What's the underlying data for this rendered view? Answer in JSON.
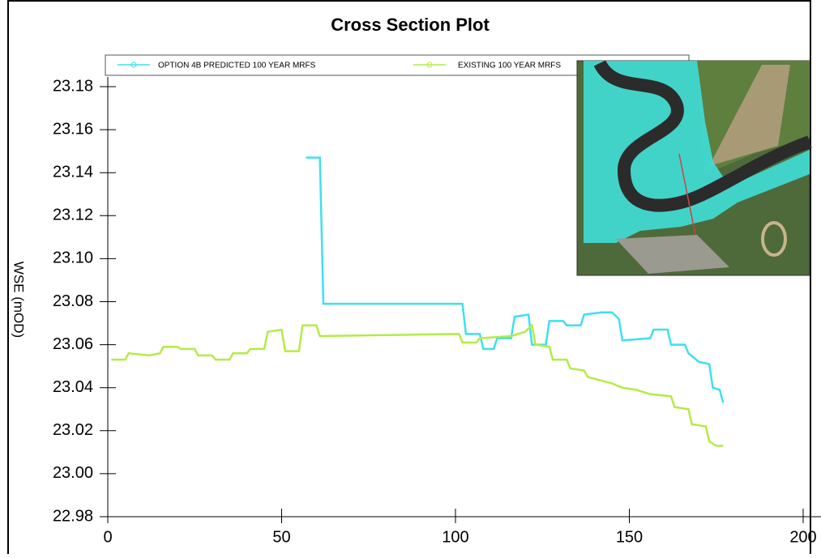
{
  "chart_data": {
    "type": "line",
    "title": "Cross Section Plot",
    "ylabel": "WSE (mOD)",
    "xlim": [
      0,
      200
    ],
    "xticks": [
      0,
      50,
      100,
      150,
      200
    ],
    "ylim": [
      22.98,
      23.18
    ],
    "yticks": [
      22.98,
      {
        "value": 23.0,
        "label": "23.00"
      },
      23.02,
      23.04,
      23.06,
      23.08,
      {
        "value": 23.1,
        "label": "23.10"
      },
      23.12,
      23.14,
      23.16,
      23.18
    ],
    "series": [
      {
        "name": "OPTION 4B PREDICTED 100 YEAR MRFS",
        "color": "#3fdff0",
        "x": [
          57,
          61,
          62,
          101,
          102,
          103,
          107,
          108,
          111,
          112,
          116,
          117,
          121,
          122,
          126,
          127,
          131,
          132,
          136,
          137,
          142,
          145,
          147,
          148,
          156,
          157,
          161,
          162,
          166,
          167,
          170,
          173,
          174,
          176,
          177
        ],
        "values": [
          23.147,
          23.147,
          23.079,
          23.079,
          23.079,
          23.065,
          23.065,
          23.058,
          23.058,
          23.063,
          23.063,
          23.073,
          23.074,
          23.06,
          23.06,
          23.071,
          23.071,
          23.069,
          23.069,
          23.074,
          23.075,
          23.075,
          23.072,
          23.062,
          23.063,
          23.067,
          23.067,
          23.06,
          23.06,
          23.056,
          23.052,
          23.051,
          23.04,
          23.039,
          23.033
        ]
      },
      {
        "name": "EXISTING 100 YEAR MRFS",
        "color": "#b3ec45",
        "x": [
          1,
          5,
          6,
          12,
          15,
          16,
          20,
          21,
          25,
          26,
          30,
          31,
          35,
          36,
          40,
          41,
          45,
          46,
          50,
          51,
          55,
          56,
          60,
          61,
          101,
          102,
          106,
          107,
          116,
          120,
          122,
          123,
          127,
          128,
          132,
          133,
          137,
          138,
          145,
          148,
          152,
          156,
          162,
          163,
          167,
          168,
          172,
          173,
          175,
          177
        ],
        "values": [
          23.053,
          23.053,
          23.056,
          23.055,
          23.056,
          23.059,
          23.059,
          23.058,
          23.058,
          23.055,
          23.055,
          23.053,
          23.053,
          23.056,
          23.056,
          23.058,
          23.058,
          23.066,
          23.067,
          23.057,
          23.057,
          23.069,
          23.069,
          23.064,
          23.065,
          23.061,
          23.061,
          23.063,
          23.064,
          23.066,
          23.069,
          23.06,
          23.059,
          23.053,
          23.053,
          23.049,
          23.048,
          23.045,
          23.042,
          23.04,
          23.039,
          23.037,
          23.036,
          23.031,
          23.03,
          23.023,
          23.022,
          23.015,
          23.013,
          23.013
        ]
      }
    ]
  }
}
